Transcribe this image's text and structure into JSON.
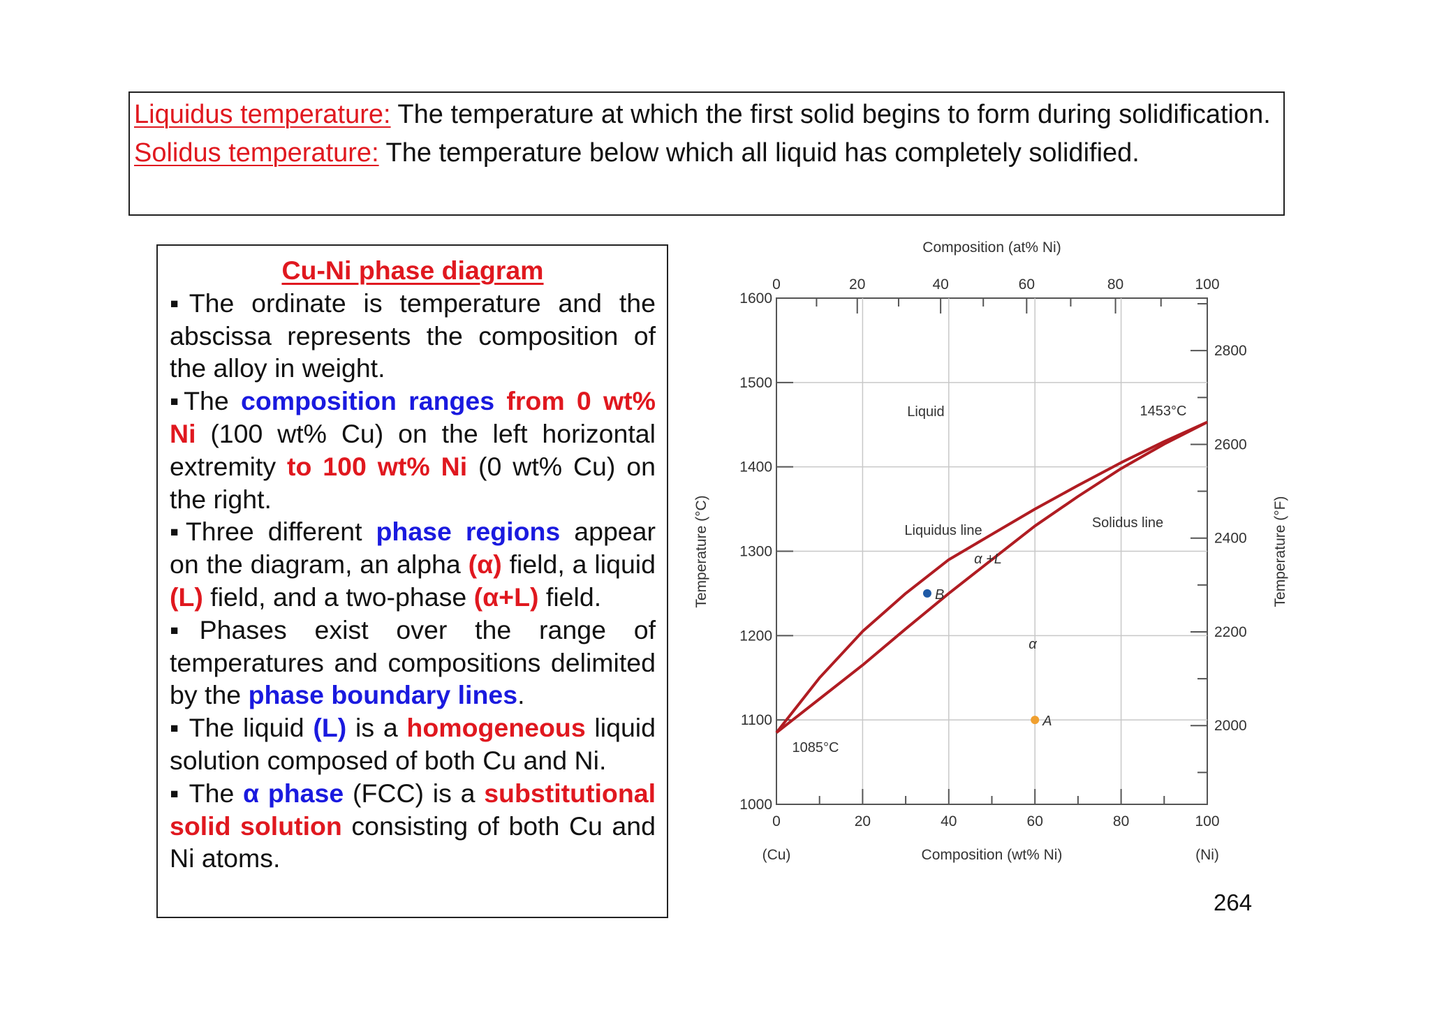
{
  "definitions": {
    "liquidus_term": "Liquidus temperature:",
    "liquidus_text": " The temperature at which the first solid begins to form during solidification.",
    "solidus_term": "Solidus temperature:",
    "solidus_text": " The temperature below which all liquid has completely solidified."
  },
  "left_panel": {
    "title": "Cu-Ni phase diagram",
    "b1": "▪The ordinate is temperature and the abscissa represents the composition of the alloy in weight.",
    "b2_a": "▪The ",
    "b2_b": "composition ranges",
    "b2_c": " ",
    "b2_d": "from 0 wt% Ni",
    "b2_e": " (100 wt% Cu) on the left horizontal extremity ",
    "b2_f": "to 100 wt% Ni",
    "b2_g": " (0 wt% Cu) on the right.",
    "b3_a": "▪Three different ",
    "b3_b": "phase regions",
    "b3_c": " appear on the diagram, an alpha ",
    "b3_d": "(α)",
    "b3_e": " field, a liquid ",
    "b3_f": "(L)",
    "b3_g": " field, and a two-phase ",
    "b3_h": "(α+L)",
    "b3_i": " field.",
    "b4_a": "▪Phases exist over the range of temperatures and compositions delimited by the ",
    "b4_b": "phase boundary lines",
    "b4_c": ".",
    "b5_a": "▪ The liquid ",
    "b5_b": "(L)",
    "b5_c": " is a ",
    "b5_d": "homogeneous",
    "b5_e": " liquid solution composed of both Cu and Ni.",
    "b6_a": "▪ The ",
    "b6_b": "α phase",
    "b6_c": " (FCC) is a ",
    "b6_d": "substitutional solid solution",
    "b6_e": " consisting of both Cu and Ni atoms."
  },
  "page_number": "264",
  "chart_data": {
    "type": "line",
    "title_top": "Composition (at% Ni)",
    "xlabel": "Composition (wt% Ni)",
    "ylabel_left": "Temperature (°C)",
    "ylabel_right": "Temperature (°F)",
    "xlim": [
      0,
      100
    ],
    "ylim": [
      1000,
      1600
    ],
    "x_ticks": [
      "0",
      "20",
      "40",
      "60",
      "80",
      "100"
    ],
    "top_x_ticks": [
      "0",
      "20",
      "40",
      "60",
      "80",
      "100"
    ],
    "y_ticks_left": [
      "1000",
      "1100",
      "1200",
      "1300",
      "1400",
      "1500",
      "1600"
    ],
    "y_ticks_right": [
      "2000",
      "2200",
      "2400",
      "2600",
      "2800"
    ],
    "x_end_labels": [
      "(Cu)",
      "(Ni)"
    ],
    "series": [
      {
        "name": "Liquidus line",
        "x": [
          0,
          10,
          20,
          30,
          40,
          50,
          60,
          70,
          80,
          90,
          100
        ],
        "y": [
          1085,
          1150,
          1205,
          1250,
          1290,
          1320,
          1350,
          1378,
          1405,
          1430,
          1453
        ]
      },
      {
        "name": "Solidus line",
        "x": [
          0,
          10,
          20,
          30,
          40,
          50,
          60,
          70,
          80,
          90,
          100
        ],
        "y": [
          1085,
          1125,
          1165,
          1208,
          1250,
          1290,
          1330,
          1365,
          1398,
          1427,
          1453
        ]
      }
    ],
    "region_labels": [
      "Liquid",
      "α +L",
      "α"
    ],
    "annotations": [
      "1453°C",
      "1085°C"
    ],
    "points": [
      {
        "label": "B",
        "x": 35,
        "y": 1250,
        "color": "#1f5aa6"
      },
      {
        "label": "A",
        "x": 60,
        "y": 1100,
        "color": "#f0a030"
      }
    ],
    "grid": true,
    "line_color": "#b01c22"
  }
}
